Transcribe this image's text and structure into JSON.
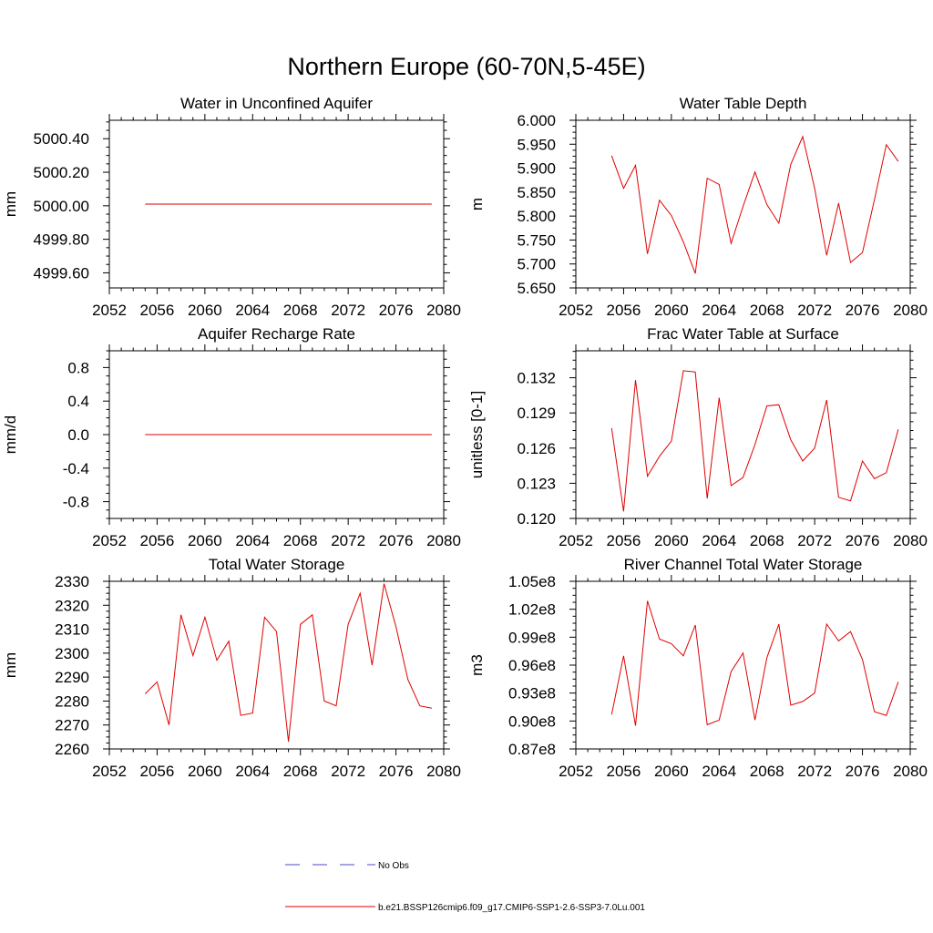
{
  "figure": {
    "title": "Northern Europe (60-70N,5-45E)",
    "legend": [
      {
        "label": "No Obs",
        "color": "#4a4ac8",
        "style": "dashed"
      },
      {
        "label": "b.e21.BSSP126cmip6.f09_g17.CMIP6-SSP1-2.6-SSP3-7.0Lu.001",
        "color": "#e00000",
        "style": "solid"
      }
    ]
  },
  "chart_data": [
    {
      "type": "line",
      "title": "Water in Unconfined Aquifer",
      "ylabel": "mm",
      "xlim": [
        2052,
        2080
      ],
      "xticks": [
        "2052",
        "2056",
        "2060",
        "2064",
        "2068",
        "2072",
        "2076",
        "2080"
      ],
      "ylim": [
        4999.51,
        5000.51
      ],
      "yticks": [
        4999.6,
        4999.8,
        5000.0,
        5000.2,
        5000.4
      ],
      "ytick_labels": [
        "4999.60",
        "4999.80",
        "5000.00",
        "5000.20",
        "5000.40"
      ],
      "x": [
        2055,
        2056,
        2057,
        2058,
        2059,
        2060,
        2061,
        2062,
        2063,
        2064,
        2065,
        2066,
        2067,
        2068,
        2069,
        2070,
        2071,
        2072,
        2073,
        2074,
        2075,
        2076,
        2077,
        2078,
        2079
      ],
      "series": [
        {
          "color": "#e00000",
          "values": [
            5000.01,
            5000.01,
            5000.01,
            5000.01,
            5000.01,
            5000.01,
            5000.01,
            5000.01,
            5000.01,
            5000.01,
            5000.01,
            5000.01,
            5000.01,
            5000.01,
            5000.01,
            5000.01,
            5000.01,
            5000.01,
            5000.01,
            5000.01,
            5000.01,
            5000.01,
            5000.01,
            5000.01,
            5000.01
          ]
        }
      ]
    },
    {
      "type": "line",
      "title": "Water Table Depth",
      "ylabel": "m",
      "xlim": [
        2052,
        2080
      ],
      "xticks": [
        "2052",
        "2056",
        "2060",
        "2064",
        "2068",
        "2072",
        "2076",
        "2080"
      ],
      "ylim": [
        5.65,
        6.0
      ],
      "yticks": [
        5.65,
        5.7,
        5.75,
        5.8,
        5.85,
        5.9,
        5.95,
        6.0
      ],
      "ytick_labels": [
        "5.650",
        "5.700",
        "5.750",
        "5.800",
        "5.850",
        "5.900",
        "5.950",
        "6.000"
      ],
      "x": [
        2055,
        2056,
        2057,
        2058,
        2059,
        2060,
        2061,
        2062,
        2063,
        2064,
        2065,
        2066,
        2067,
        2068,
        2069,
        2070,
        2071,
        2072,
        2073,
        2074,
        2075,
        2076,
        2077,
        2078,
        2079
      ],
      "series": [
        {
          "color": "#e00000",
          "values": [
            5.926,
            5.858,
            5.906,
            5.721,
            5.833,
            5.801,
            5.746,
            5.68,
            5.879,
            5.866,
            5.743,
            5.82,
            5.892,
            5.824,
            5.785,
            5.908,
            5.966,
            5.858,
            5.718,
            5.827,
            5.703,
            5.724,
            5.834,
            5.949,
            5.914
          ]
        }
      ]
    },
    {
      "type": "line",
      "title": "Aquifer Recharge Rate",
      "ylabel": "mm/d",
      "xlim": [
        2052,
        2080
      ],
      "xticks": [
        "2052",
        "2056",
        "2060",
        "2064",
        "2068",
        "2072",
        "2076",
        "2080"
      ],
      "ylim": [
        -1.0,
        1.0
      ],
      "yticks": [
        -0.8,
        -0.4,
        0.0,
        0.4,
        0.8
      ],
      "ytick_labels": [
        "-0.8",
        "-0.4",
        "0.0",
        "0.4",
        "0.8"
      ],
      "x": [
        2055,
        2056,
        2057,
        2058,
        2059,
        2060,
        2061,
        2062,
        2063,
        2064,
        2065,
        2066,
        2067,
        2068,
        2069,
        2070,
        2071,
        2072,
        2073,
        2074,
        2075,
        2076,
        2077,
        2078,
        2079
      ],
      "series": [
        {
          "color": "#e00000",
          "values": [
            0,
            0,
            0,
            0,
            0,
            0,
            0,
            0,
            0,
            0,
            0,
            0,
            0,
            0,
            0,
            0,
            0,
            0,
            0,
            0,
            0,
            0,
            0,
            0,
            0
          ]
        }
      ]
    },
    {
      "type": "line",
      "title": "Frac Water Table at Surface",
      "ylabel": "unitless [0-1]",
      "xlim": [
        2052,
        2080
      ],
      "xticks": [
        "2052",
        "2056",
        "2060",
        "2064",
        "2068",
        "2072",
        "2076",
        "2080"
      ],
      "ylim": [
        0.12,
        0.1343
      ],
      "yticks": [
        0.12,
        0.123,
        0.126,
        0.129,
        0.132
      ],
      "ytick_labels": [
        "0.120",
        "0.123",
        "0.126",
        "0.129",
        "0.132"
      ],
      "x": [
        2055,
        2056,
        2057,
        2058,
        2059,
        2060,
        2061,
        2062,
        2063,
        2064,
        2065,
        2066,
        2067,
        2068,
        2069,
        2070,
        2071,
        2072,
        2073,
        2074,
        2075,
        2076,
        2077,
        2078,
        2079
      ],
      "series": [
        {
          "color": "#e00000",
          "values": [
            0.1277,
            0.1206,
            0.1318,
            0.1236,
            0.1253,
            0.1266,
            0.1326,
            0.1325,
            0.1217,
            0.1303,
            0.1228,
            0.1235,
            0.1263,
            0.1296,
            0.1297,
            0.1267,
            0.1249,
            0.126,
            0.1301,
            0.1218,
            0.1215,
            0.1249,
            0.1234,
            0.1239,
            0.1276
          ]
        }
      ]
    },
    {
      "type": "line",
      "title": "Total Water Storage",
      "ylabel": "mm",
      "xlim": [
        2052,
        2080
      ],
      "xticks": [
        "2052",
        "2056",
        "2060",
        "2064",
        "2068",
        "2072",
        "2076",
        "2080"
      ],
      "ylim": [
        2260,
        2330
      ],
      "yticks": [
        2260,
        2270,
        2280,
        2290,
        2300,
        2310,
        2320,
        2330
      ],
      "ytick_labels": [
        "2260",
        "2270",
        "2280",
        "2290",
        "2300",
        "2310",
        "2320",
        "2330"
      ],
      "x": [
        2055,
        2056,
        2057,
        2058,
        2059,
        2060,
        2061,
        2062,
        2063,
        2064,
        2065,
        2066,
        2067,
        2068,
        2069,
        2070,
        2071,
        2072,
        2073,
        2074,
        2075,
        2076,
        2077,
        2078,
        2079
      ],
      "series": [
        {
          "color": "#e00000",
          "values": [
            2283,
            2288,
            2270,
            2316,
            2299,
            2315,
            2297,
            2305,
            2274,
            2275,
            2315,
            2309,
            2263,
            2312,
            2316,
            2280,
            2278,
            2312,
            2325,
            2295,
            2329,
            2311,
            2289,
            2278,
            2277
          ]
        }
      ]
    },
    {
      "type": "line",
      "title": "River Channel Total Water Storage",
      "ylabel": "m3",
      "xlim": [
        2052,
        2080
      ],
      "xticks": [
        "2052",
        "2056",
        "2060",
        "2064",
        "2068",
        "2072",
        "2076",
        "2080"
      ],
      "ylim": [
        87000000.0,
        105000000.0
      ],
      "yticks": [
        87000000.0,
        90000000.0,
        93000000.0,
        96000000.0,
        99000000.0,
        102000000.0,
        105000000.0
      ],
      "ytick_labels": [
        "0.87e8",
        "0.90e8",
        "0.93e8",
        "0.96e8",
        "0.99e8",
        "1.02e8",
        "1.05e8"
      ],
      "x": [
        2055,
        2056,
        2057,
        2058,
        2059,
        2060,
        2061,
        2062,
        2063,
        2064,
        2065,
        2066,
        2067,
        2068,
        2069,
        2070,
        2071,
        2072,
        2073,
        2074,
        2075,
        2076,
        2077,
        2078,
        2079
      ],
      "series": [
        {
          "color": "#e00000",
          "values": [
            90700000.0,
            97000000.0,
            89500000.0,
            102900000.0,
            98800000.0,
            98300000.0,
            97000000.0,
            100300000.0,
            89600000.0,
            90100000.0,
            95300000.0,
            97300000.0,
            90100000.0,
            96800000.0,
            100400000.0,
            91700000.0,
            92100000.0,
            93000000.0,
            100400000.0,
            98600000.0,
            99600000.0,
            96600000.0,
            91000000.0,
            90600000.0,
            94200000.0
          ]
        }
      ]
    }
  ]
}
